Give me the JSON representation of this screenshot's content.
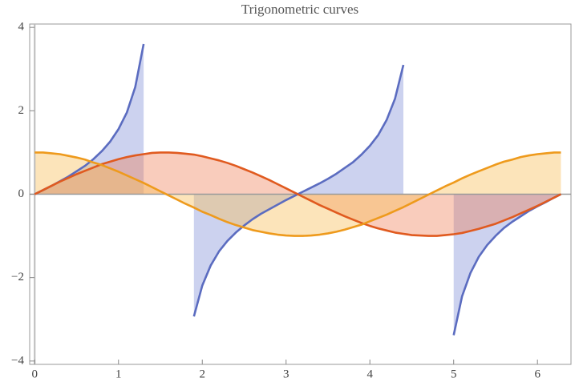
{
  "chart_data": {
    "type": "line",
    "title": "Trigonometric curves",
    "x": [
      0,
      0.1,
      0.2,
      0.3,
      0.4,
      0.5,
      0.6,
      0.7,
      0.8,
      0.9,
      1.0,
      1.1,
      1.2,
      1.3,
      1.4,
      1.5,
      1.6,
      1.7,
      1.8,
      1.9,
      2.0,
      2.1,
      2.2,
      2.3,
      2.4,
      2.5,
      2.6,
      2.7,
      2.8,
      2.9,
      3.0,
      3.1,
      3.2,
      3.3,
      3.4,
      3.5,
      3.6,
      3.7,
      3.8,
      3.9,
      4.0,
      4.1,
      4.2,
      4.3,
      4.4,
      4.5,
      4.6,
      4.7,
      4.8,
      4.9,
      5.0,
      5.1,
      5.2,
      5.3,
      5.4,
      5.5,
      5.6,
      5.7,
      5.8,
      5.9,
      6.0,
      6.1,
      6.2,
      6.28
    ],
    "series": [
      {
        "color": "#5b6cc0",
        "fill": "rgba(110,125,210,0.35)",
        "values": [
          0,
          0.1,
          0.2,
          0.31,
          0.42,
          0.55,
          0.68,
          0.84,
          1.03,
          1.26,
          1.56,
          1.96,
          2.57,
          3.6,
          null,
          null,
          null,
          null,
          null,
          -2.93,
          -2.19,
          -1.71,
          -1.37,
          -1.12,
          -0.92,
          -0.75,
          -0.6,
          -0.47,
          -0.36,
          -0.25,
          -0.14,
          -0.04,
          0.06,
          0.16,
          0.26,
          0.37,
          0.49,
          0.63,
          0.77,
          0.95,
          1.16,
          1.42,
          1.78,
          2.29,
          3.1,
          null,
          null,
          null,
          null,
          null,
          -3.38,
          -2.45,
          -1.89,
          -1.5,
          -1.22,
          -1.0,
          -0.81,
          -0.66,
          -0.53,
          -0.4,
          -0.29,
          -0.19,
          -0.08,
          0
        ]
      },
      {
        "color": "#e05a1f",
        "fill": "rgba(240,120,80,0.38)",
        "values": [
          0,
          0.1,
          0.2,
          0.3,
          0.39,
          0.48,
          0.56,
          0.64,
          0.72,
          0.78,
          0.84,
          0.89,
          0.93,
          0.96,
          0.99,
          1.0,
          1.0,
          0.99,
          0.97,
          0.95,
          0.91,
          0.86,
          0.81,
          0.75,
          0.68,
          0.6,
          0.52,
          0.43,
          0.34,
          0.24,
          0.14,
          0.04,
          -0.06,
          -0.16,
          -0.26,
          -0.35,
          -0.44,
          -0.53,
          -0.61,
          -0.69,
          -0.76,
          -0.82,
          -0.87,
          -0.92,
          -0.95,
          -0.98,
          -0.99,
          -1.0,
          -1.0,
          -0.98,
          -0.96,
          -0.93,
          -0.88,
          -0.83,
          -0.77,
          -0.71,
          -0.63,
          -0.55,
          -0.46,
          -0.37,
          -0.28,
          -0.18,
          -0.08,
          0
        ]
      },
      {
        "color": "#ee9a1c",
        "fill": "rgba(248,190,90,0.42)",
        "values": [
          1,
          1.0,
          0.98,
          0.96,
          0.92,
          0.88,
          0.83,
          0.76,
          0.7,
          0.62,
          0.54,
          0.45,
          0.36,
          0.27,
          0.17,
          0.07,
          -0.03,
          -0.13,
          -0.23,
          -0.32,
          -0.42,
          -0.5,
          -0.59,
          -0.67,
          -0.74,
          -0.8,
          -0.86,
          -0.9,
          -0.94,
          -0.97,
          -0.99,
          -1.0,
          -1.0,
          -0.99,
          -0.97,
          -0.94,
          -0.9,
          -0.85,
          -0.79,
          -0.73,
          -0.65,
          -0.57,
          -0.49,
          -0.4,
          -0.31,
          -0.21,
          -0.11,
          -0.01,
          0.09,
          0.19,
          0.28,
          0.38,
          0.47,
          0.55,
          0.63,
          0.71,
          0.78,
          0.83,
          0.89,
          0.93,
          0.96,
          0.98,
          1.0,
          1
        ]
      }
    ],
    "xlim": [
      -0.06,
      6.4
    ],
    "ylim": [
      -4.08,
      4.08
    ],
    "xticks": [
      0,
      1,
      2,
      3,
      4,
      5,
      6
    ],
    "yticks": [
      {
        "value": -4,
        "label": "−4"
      },
      {
        "value": -2,
        "label": "−2"
      },
      0,
      2,
      4
    ]
  }
}
